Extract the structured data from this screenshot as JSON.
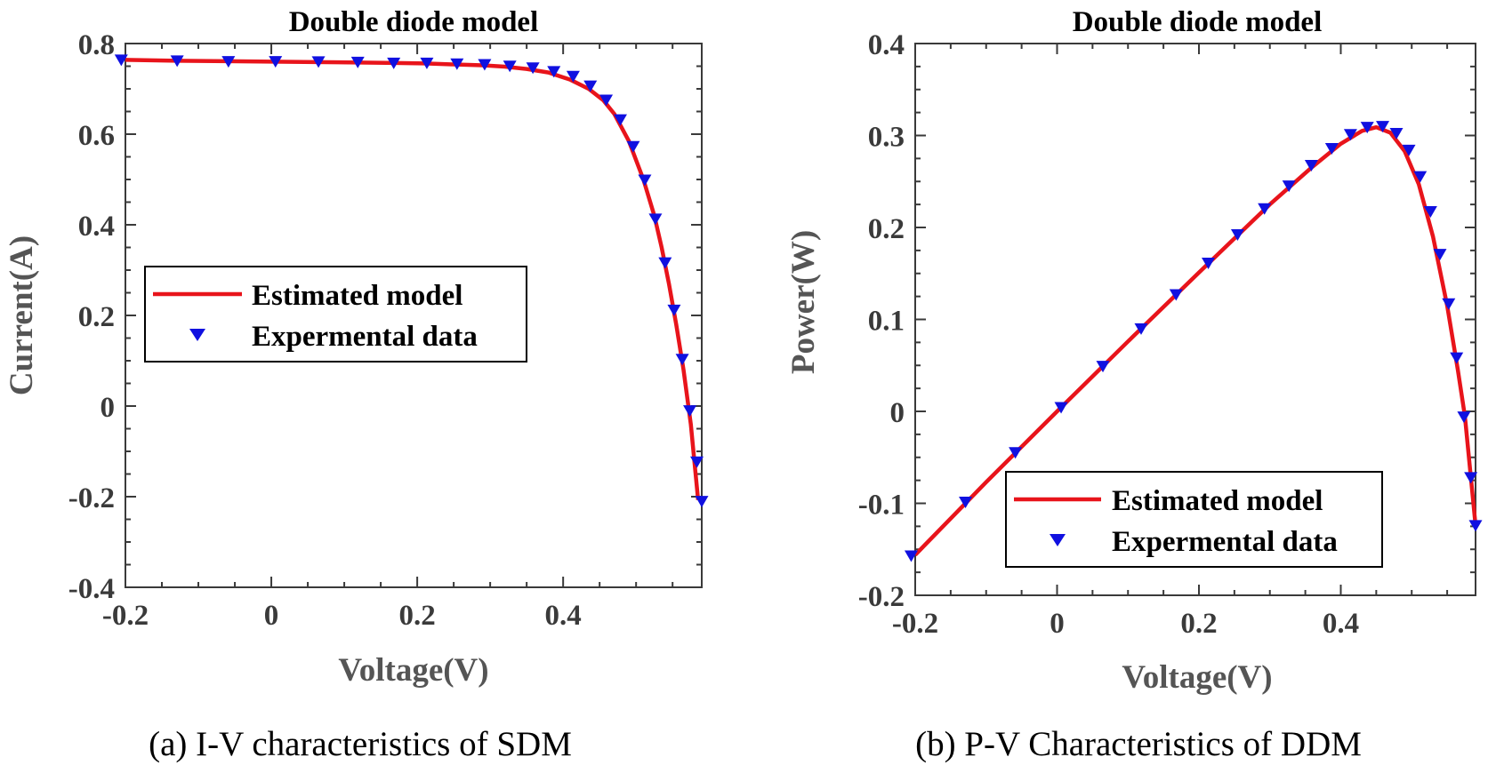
{
  "chart_data": [
    {
      "type": "line",
      "title": "Double diode model",
      "xlabel": "Voltage(V)",
      "ylabel": "Current(A)",
      "xlim": [
        -0.2,
        0.59
      ],
      "ylim": [
        -0.4,
        0.8
      ],
      "xticks": [
        -0.2,
        0,
        0.2,
        0.4
      ],
      "xtick_labels": [
        "-0.2",
        "0",
        "0.2",
        "0.4"
      ],
      "yticks": [
        -0.4,
        -0.2,
        0,
        0.2,
        0.4,
        0.6,
        0.8
      ],
      "ytick_labels": [
        "-0.4",
        "-0.2",
        "0",
        "0.2",
        "0.4",
        "0.6",
        "0.8"
      ],
      "legend": {
        "position": "center-left",
        "entries": [
          "Estimated model",
          "Expermental data"
        ]
      },
      "caption": "(a) I-V characteristics of SDM",
      "series": [
        {
          "name": "Estimated model",
          "style": "line",
          "color": "#e8141b",
          "x": [
            -0.2,
            -0.13,
            -0.06,
            0.0,
            0.06,
            0.12,
            0.17,
            0.21,
            0.25,
            0.29,
            0.32,
            0.35,
            0.38,
            0.41,
            0.435,
            0.455,
            0.47,
            0.49,
            0.51,
            0.525,
            0.535,
            0.545,
            0.555,
            0.565,
            0.575,
            0.585
          ],
          "y": [
            0.764,
            0.762,
            0.761,
            0.76,
            0.759,
            0.758,
            0.757,
            0.756,
            0.754,
            0.752,
            0.749,
            0.744,
            0.736,
            0.72,
            0.7,
            0.675,
            0.645,
            0.585,
            0.5,
            0.42,
            0.35,
            0.27,
            0.18,
            0.08,
            -0.04,
            -0.207
          ]
        },
        {
          "name": "Expermental data",
          "style": "markers",
          "marker": "triangle-down",
          "color": "#1010e0",
          "x": [
            -0.2057,
            -0.1291,
            -0.0588,
            0.0057,
            0.0646,
            0.1185,
            0.1678,
            0.2132,
            0.2545,
            0.2924,
            0.3269,
            0.3585,
            0.3873,
            0.4137,
            0.4373,
            0.459,
            0.4784,
            0.496,
            0.5119,
            0.5265,
            0.5398,
            0.5521,
            0.5633,
            0.5736,
            0.5833,
            0.59
          ],
          "y": [
            0.764,
            0.762,
            0.7605,
            0.7605,
            0.76,
            0.759,
            0.757,
            0.757,
            0.7555,
            0.754,
            0.7505,
            0.7465,
            0.7385,
            0.728,
            0.7065,
            0.6755,
            0.632,
            0.573,
            0.499,
            0.413,
            0.3165,
            0.212,
            0.1035,
            -0.01,
            -0.123,
            -0.21
          ]
        }
      ]
    },
    {
      "type": "line",
      "title": "Double diode model",
      "xlabel": "Voltage(V)",
      "ylabel": "Power(W)",
      "xlim": [
        -0.2,
        0.59
      ],
      "ylim": [
        -0.2,
        0.4
      ],
      "xticks": [
        -0.2,
        0,
        0.2,
        0.4
      ],
      "xtick_labels": [
        "-0.2",
        "0",
        "0.2",
        "0.4"
      ],
      "yticks": [
        -0.2,
        -0.1,
        0,
        0.1,
        0.2,
        0.3,
        0.4
      ],
      "ytick_labels": [
        "-0.2",
        "-0.1",
        "0",
        "0.1",
        "0.2",
        "0.3",
        "0.4"
      ],
      "legend": {
        "position": "bottom-right",
        "entries": [
          "Estimated model",
          "Expermental data"
        ]
      },
      "caption": "(b) P-V Characteristics of DDM",
      "series": [
        {
          "name": "Estimated model",
          "style": "line",
          "color": "#e8141b",
          "x": [
            -0.2,
            -0.1,
            0.0,
            0.1,
            0.2,
            0.3,
            0.36,
            0.4,
            0.43,
            0.45,
            0.47,
            0.49,
            0.51,
            0.53,
            0.55,
            0.565,
            0.575,
            0.59
          ],
          "y": [
            -0.156,
            -0.077,
            0.0,
            0.076,
            0.151,
            0.225,
            0.266,
            0.291,
            0.305,
            0.309,
            0.303,
            0.283,
            0.247,
            0.19,
            0.115,
            0.045,
            -0.005,
            -0.124
          ]
        },
        {
          "name": "Expermental data",
          "style": "markers",
          "marker": "triangle-down",
          "color": "#1010e0",
          "x": [
            -0.2057,
            -0.1291,
            -0.0588,
            0.0057,
            0.0646,
            0.1185,
            0.1678,
            0.2132,
            0.2545,
            0.2924,
            0.3269,
            0.3585,
            0.3873,
            0.4137,
            0.4373,
            0.459,
            0.4784,
            0.496,
            0.5119,
            0.5265,
            0.5398,
            0.5521,
            0.5633,
            0.5736,
            0.5833,
            0.59
          ],
          "y": [
            -0.157,
            -0.0985,
            -0.0447,
            0.0043,
            0.0491,
            0.09,
            0.127,
            0.1613,
            0.1923,
            0.2205,
            0.2453,
            0.2676,
            0.286,
            0.3012,
            0.309,
            0.31,
            0.3024,
            0.2842,
            0.2554,
            0.2174,
            0.1709,
            0.1171,
            0.0583,
            -0.0059,
            -0.0718,
            -0.124
          ]
        }
      ]
    }
  ]
}
